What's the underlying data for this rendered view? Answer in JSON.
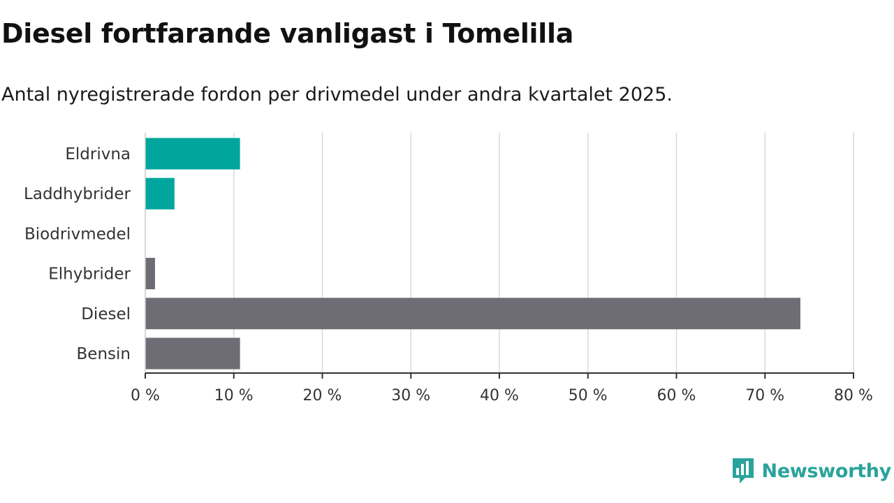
{
  "title": "Diesel fortfarande vanligast i Tomelilla",
  "subtitle": "Antal nyregistrerade fordon per drivmedel under andra kvartalet 2025.",
  "brand": {
    "name": "Newsworthy",
    "icon": "newsworthy-logo-icon",
    "color": "#2aa39b"
  },
  "chart_data": {
    "type": "bar",
    "orientation": "horizontal",
    "categories": [
      "Eldrivna",
      "Laddhybrider",
      "Biodrivmedel",
      "Elhybrider",
      "Diesel",
      "Bensin"
    ],
    "values": [
      10.7,
      3.3,
      0,
      1.1,
      74.0,
      10.7
    ],
    "colors": [
      "#00a69c",
      "#00a69c",
      "#6e6c75",
      "#6e6c75",
      "#6e6c75",
      "#6e6c75"
    ],
    "xlim": [
      0,
      80
    ],
    "xticks": [
      0,
      10,
      20,
      30,
      40,
      50,
      60,
      70,
      80
    ],
    "tick_suffix": " %",
    "grid": true
  }
}
